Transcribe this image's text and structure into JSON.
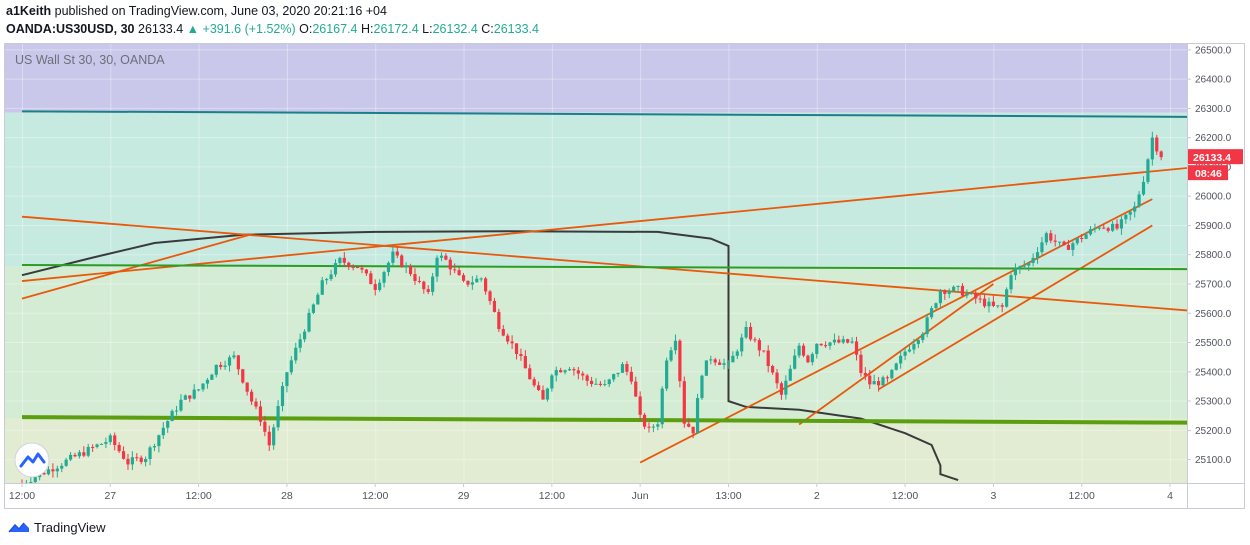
{
  "header": {
    "author": "a1Keith",
    "published": "published on TradingView.com, June 03, 2020 20:21:16 +04",
    "symbol_line": "OANDA:US30USD, 30",
    "last": "26133.4",
    "change": "▲ +391.6 (+1.52%)",
    "o_label": "O:",
    "o_value": "26167.4",
    "h_label": "H:",
    "h_value": "26172.4",
    "l_label": "L:",
    "l_value": "26132.4",
    "c_label": "C:",
    "c_value": "26133.4"
  },
  "footer": {
    "brand": "TradingView"
  },
  "colors": {
    "up": "#22ab94",
    "down": "#f23645",
    "orange": "#e8590c",
    "green_line": "#2a9d25",
    "thick_green": "#5b9e10",
    "teal_line": "#1a7f8a",
    "profile": "#3a3a3a",
    "zone_purple": "#c9c8ea",
    "zone_teal": "#c7eae0",
    "zone_light": "#d4ecd4",
    "zone_bottom": "#e2ecd2",
    "price_tag": "#f23645"
  },
  "chart_data": {
    "type": "candlestick",
    "title": "US Wall St 30, 30, OANDA",
    "y_ticks": [
      "25100.0",
      "25200.0",
      "25300.0",
      "25400.0",
      "25500.0",
      "25600.0",
      "25700.0",
      "25800.0",
      "25900.0",
      "26000.0",
      "26100.0",
      "26200.0",
      "26300.0",
      "26400.0",
      "26500.0"
    ],
    "y_tick_values": [
      25100,
      25200,
      25300,
      25400,
      25500,
      25600,
      25700,
      25800,
      25900,
      26000,
      26100,
      26200,
      26300,
      26400,
      26500
    ],
    "ylim": [
      25020,
      26520
    ],
    "x_ticks": [
      "12:00",
      "27",
      "12:00",
      "28",
      "12:00",
      "29",
      "12:00",
      "Jun",
      "13:00",
      "2",
      "12:00",
      "3",
      "12:00",
      "4"
    ],
    "x_tick_index": [
      0,
      10,
      20,
      30,
      40,
      50,
      60,
      70,
      80,
      90,
      100,
      110,
      120,
      130
    ],
    "bar_count": 140,
    "last_price": "26133.4",
    "last_value": 26133.4,
    "countdown": "08:46",
    "price_points": [
      [
        0,
        25020
      ],
      [
        4,
        25080
      ],
      [
        8,
        25140
      ],
      [
        10,
        25170
      ],
      [
        12,
        25090
      ],
      [
        14,
        25110
      ],
      [
        16,
        25210
      ],
      [
        18,
        25300
      ],
      [
        20,
        25340
      ],
      [
        22,
        25420
      ],
      [
        24,
        25450
      ],
      [
        26,
        25300
      ],
      [
        27,
        25240
      ],
      [
        28,
        25150
      ],
      [
        30,
        25400
      ],
      [
        32,
        25550
      ],
      [
        34,
        25700
      ],
      [
        36,
        25780
      ],
      [
        38,
        25760
      ],
      [
        40,
        25690
      ],
      [
        42,
        25800
      ],
      [
        44,
        25740
      ],
      [
        46,
        25660
      ],
      [
        47,
        25800
      ],
      [
        48,
        25780
      ],
      [
        50,
        25700
      ],
      [
        52,
        25720
      ],
      [
        54,
        25560
      ],
      [
        56,
        25470
      ],
      [
        58,
        25350
      ],
      [
        59,
        25300
      ],
      [
        60,
        25400
      ],
      [
        62,
        25420
      ],
      [
        64,
        25370
      ],
      [
        66,
        25350
      ],
      [
        68,
        25420
      ],
      [
        69,
        25380
      ],
      [
        70,
        25240
      ],
      [
        71,
        25200
      ],
      [
        72,
        25230
      ],
      [
        73,
        25450
      ],
      [
        74,
        25520
      ],
      [
        75,
        25230
      ],
      [
        76,
        25200
      ],
      [
        77,
        25400
      ],
      [
        78,
        25450
      ],
      [
        80,
        25420
      ],
      [
        82,
        25540
      ],
      [
        84,
        25460
      ],
      [
        86,
        25320
      ],
      [
        88,
        25490
      ],
      [
        89,
        25440
      ],
      [
        90,
        25500
      ],
      [
        92,
        25500
      ],
      [
        94,
        25500
      ],
      [
        95,
        25400
      ],
      [
        96,
        25360
      ],
      [
        98,
        25370
      ],
      [
        100,
        25470
      ],
      [
        102,
        25540
      ],
      [
        104,
        25680
      ],
      [
        106,
        25680
      ],
      [
        108,
        25650
      ],
      [
        110,
        25620
      ],
      [
        111,
        25620
      ],
      [
        112,
        25740
      ],
      [
        114,
        25770
      ],
      [
        116,
        25870
      ],
      [
        118,
        25820
      ],
      [
        120,
        25860
      ],
      [
        122,
        25900
      ],
      [
        124,
        25890
      ],
      [
        126,
        25960
      ],
      [
        127,
        26060
      ],
      [
        128,
        26200
      ],
      [
        129,
        26133.4
      ]
    ],
    "drawings": [
      {
        "kind": "orange-line",
        "from": [
          0,
          25650
        ],
        "to": [
          26,
          25870
        ]
      },
      {
        "kind": "orange-line",
        "from": [
          0,
          25930
        ],
        "to": [
          140,
          25590
        ]
      },
      {
        "kind": "orange-line",
        "from": [
          0,
          25710
        ],
        "to": [
          140,
          26120
        ]
      },
      {
        "kind": "orange-line",
        "from": [
          70,
          25090
        ],
        "to": [
          128,
          25990
        ]
      },
      {
        "kind": "orange-line",
        "from": [
          88,
          25220
        ],
        "to": [
          110,
          25700
        ]
      },
      {
        "kind": "orange-line",
        "from": [
          97,
          25340
        ],
        "to": [
          128,
          25900
        ]
      },
      {
        "kind": "green-line",
        "from": [
          0,
          25765
        ],
        "to": [
          140,
          25750
        ]
      },
      {
        "kind": "thick-green-line",
        "from": [
          0,
          25245
        ],
        "to": [
          140,
          25225
        ]
      },
      {
        "kind": "teal-line",
        "from": [
          0,
          26290
        ],
        "to": [
          140,
          26270
        ]
      }
    ]
  }
}
